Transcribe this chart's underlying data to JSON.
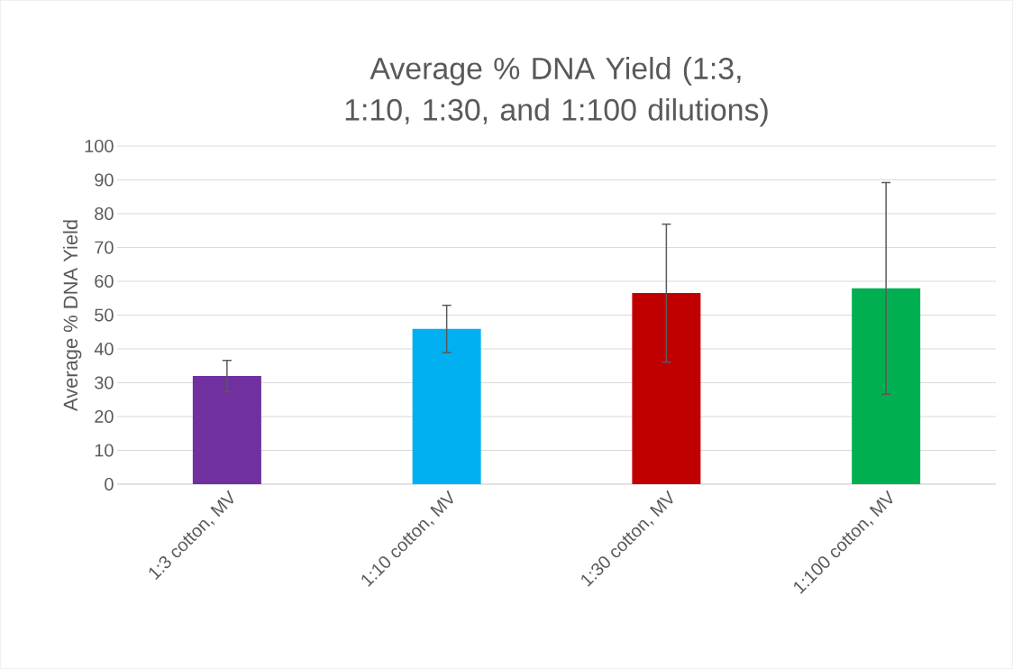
{
  "chart_data": {
    "type": "bar",
    "title": "Average % DNA Yield (1:3, 1:10, 1:30, and 1:100 dilutions)",
    "ylabel": "Average % DNA Yield",
    "categories": [
      "1:3 cotton, MV",
      "1:10 cotton, MV",
      "1:30 cotton, MV",
      "1:100 cotton, MV"
    ],
    "values": [
      32,
      45.9,
      56.5,
      57.9
    ],
    "errors": [
      4.6,
      7,
      20.4,
      31.3
    ],
    "colors": [
      "#7030a0",
      "#00b0f0",
      "#c00000",
      "#00b050"
    ],
    "ylim": [
      0,
      100
    ],
    "yticks": [
      0,
      10,
      20,
      30,
      40,
      50,
      60,
      70,
      80,
      90,
      100
    ],
    "grid": "y"
  }
}
